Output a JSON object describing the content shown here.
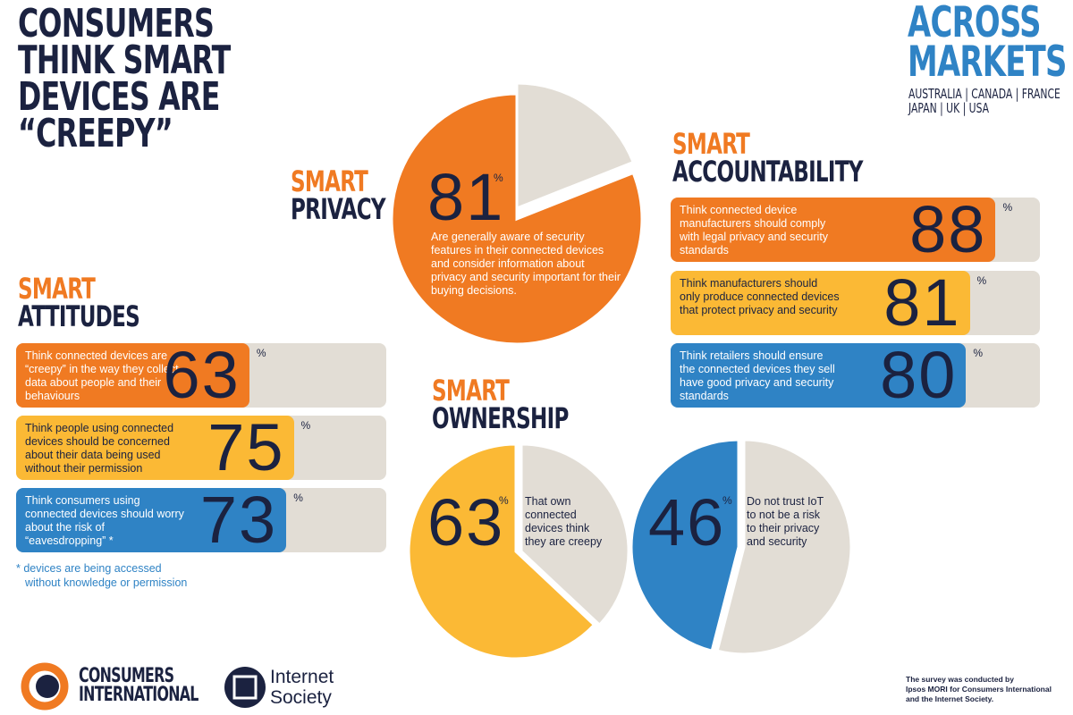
{
  "title_lines": [
    "CONSUMERS",
    "THINK SMART",
    "DEVICES ARE",
    "“CREEPY”"
  ],
  "markets": {
    "title_lines": [
      "ACROSS",
      "MARKETS"
    ],
    "countries_lines": [
      "AUSTRALIA | CANADA | FRANCE",
      "JAPAN | UK | USA"
    ]
  },
  "unit": "%",
  "xlim": [
    0,
    100
  ],
  "privacy": {
    "heading": [
      "SMART",
      "PRIVACY"
    ],
    "value": 81,
    "text": "Are generally aware of security features in their connected devices and consider information about privacy and security important for their buying decisions."
  },
  "accountability": {
    "heading": [
      "SMART",
      "ACCOUNTABILITY"
    ],
    "items": [
      {
        "text": "Think connected device manufacturers should comply with legal privacy and security standards",
        "value": 88,
        "color": "#f07a22"
      },
      {
        "text": "Think manufacturers should only produce connected devices that protect privacy and security",
        "value": 81,
        "color": "#fbb935"
      },
      {
        "text": "Think retailers should ensure the connected devices they sell have good privacy and security standards",
        "value": 80,
        "color": "#2f83c5"
      }
    ]
  },
  "attitudes": {
    "heading": [
      "SMART",
      "ATTITUDES"
    ],
    "items": [
      {
        "text": "Think connected devices are “creepy” in the way they collect data about people and their behaviours",
        "value": 63,
        "color": "#f07a22"
      },
      {
        "text": "Think people using connected devices should be concerned about their data being used without their permission",
        "value": 75,
        "color": "#fbb935"
      },
      {
        "text": "Think consumers using connected devices should worry about the risk of “eavesdropping” *",
        "value": 73,
        "color": "#2f83c5"
      }
    ],
    "footnote_lines": [
      "* devices are being accessed",
      "without knowledge or permission"
    ]
  },
  "ownership": {
    "heading": [
      "SMART",
      "OWNERSHIP"
    ],
    "items": [
      {
        "value": 63,
        "text": "That own connected devices think they are creepy",
        "color": "#fbb935"
      },
      {
        "value": 46,
        "text": "Do not trust IoT to not be a risk to their privacy and security",
        "color": "#2f83c5"
      }
    ]
  },
  "logos": {
    "consumers_lines": [
      "CONSUMERS",
      "INTERNATIONAL"
    ],
    "isoc_lines": [
      "Internet",
      "Society"
    ]
  },
  "footer_lines": [
    "The survey was conducted by",
    "Ipsos MORI for Consumers International",
    "and the Internet Society."
  ]
}
